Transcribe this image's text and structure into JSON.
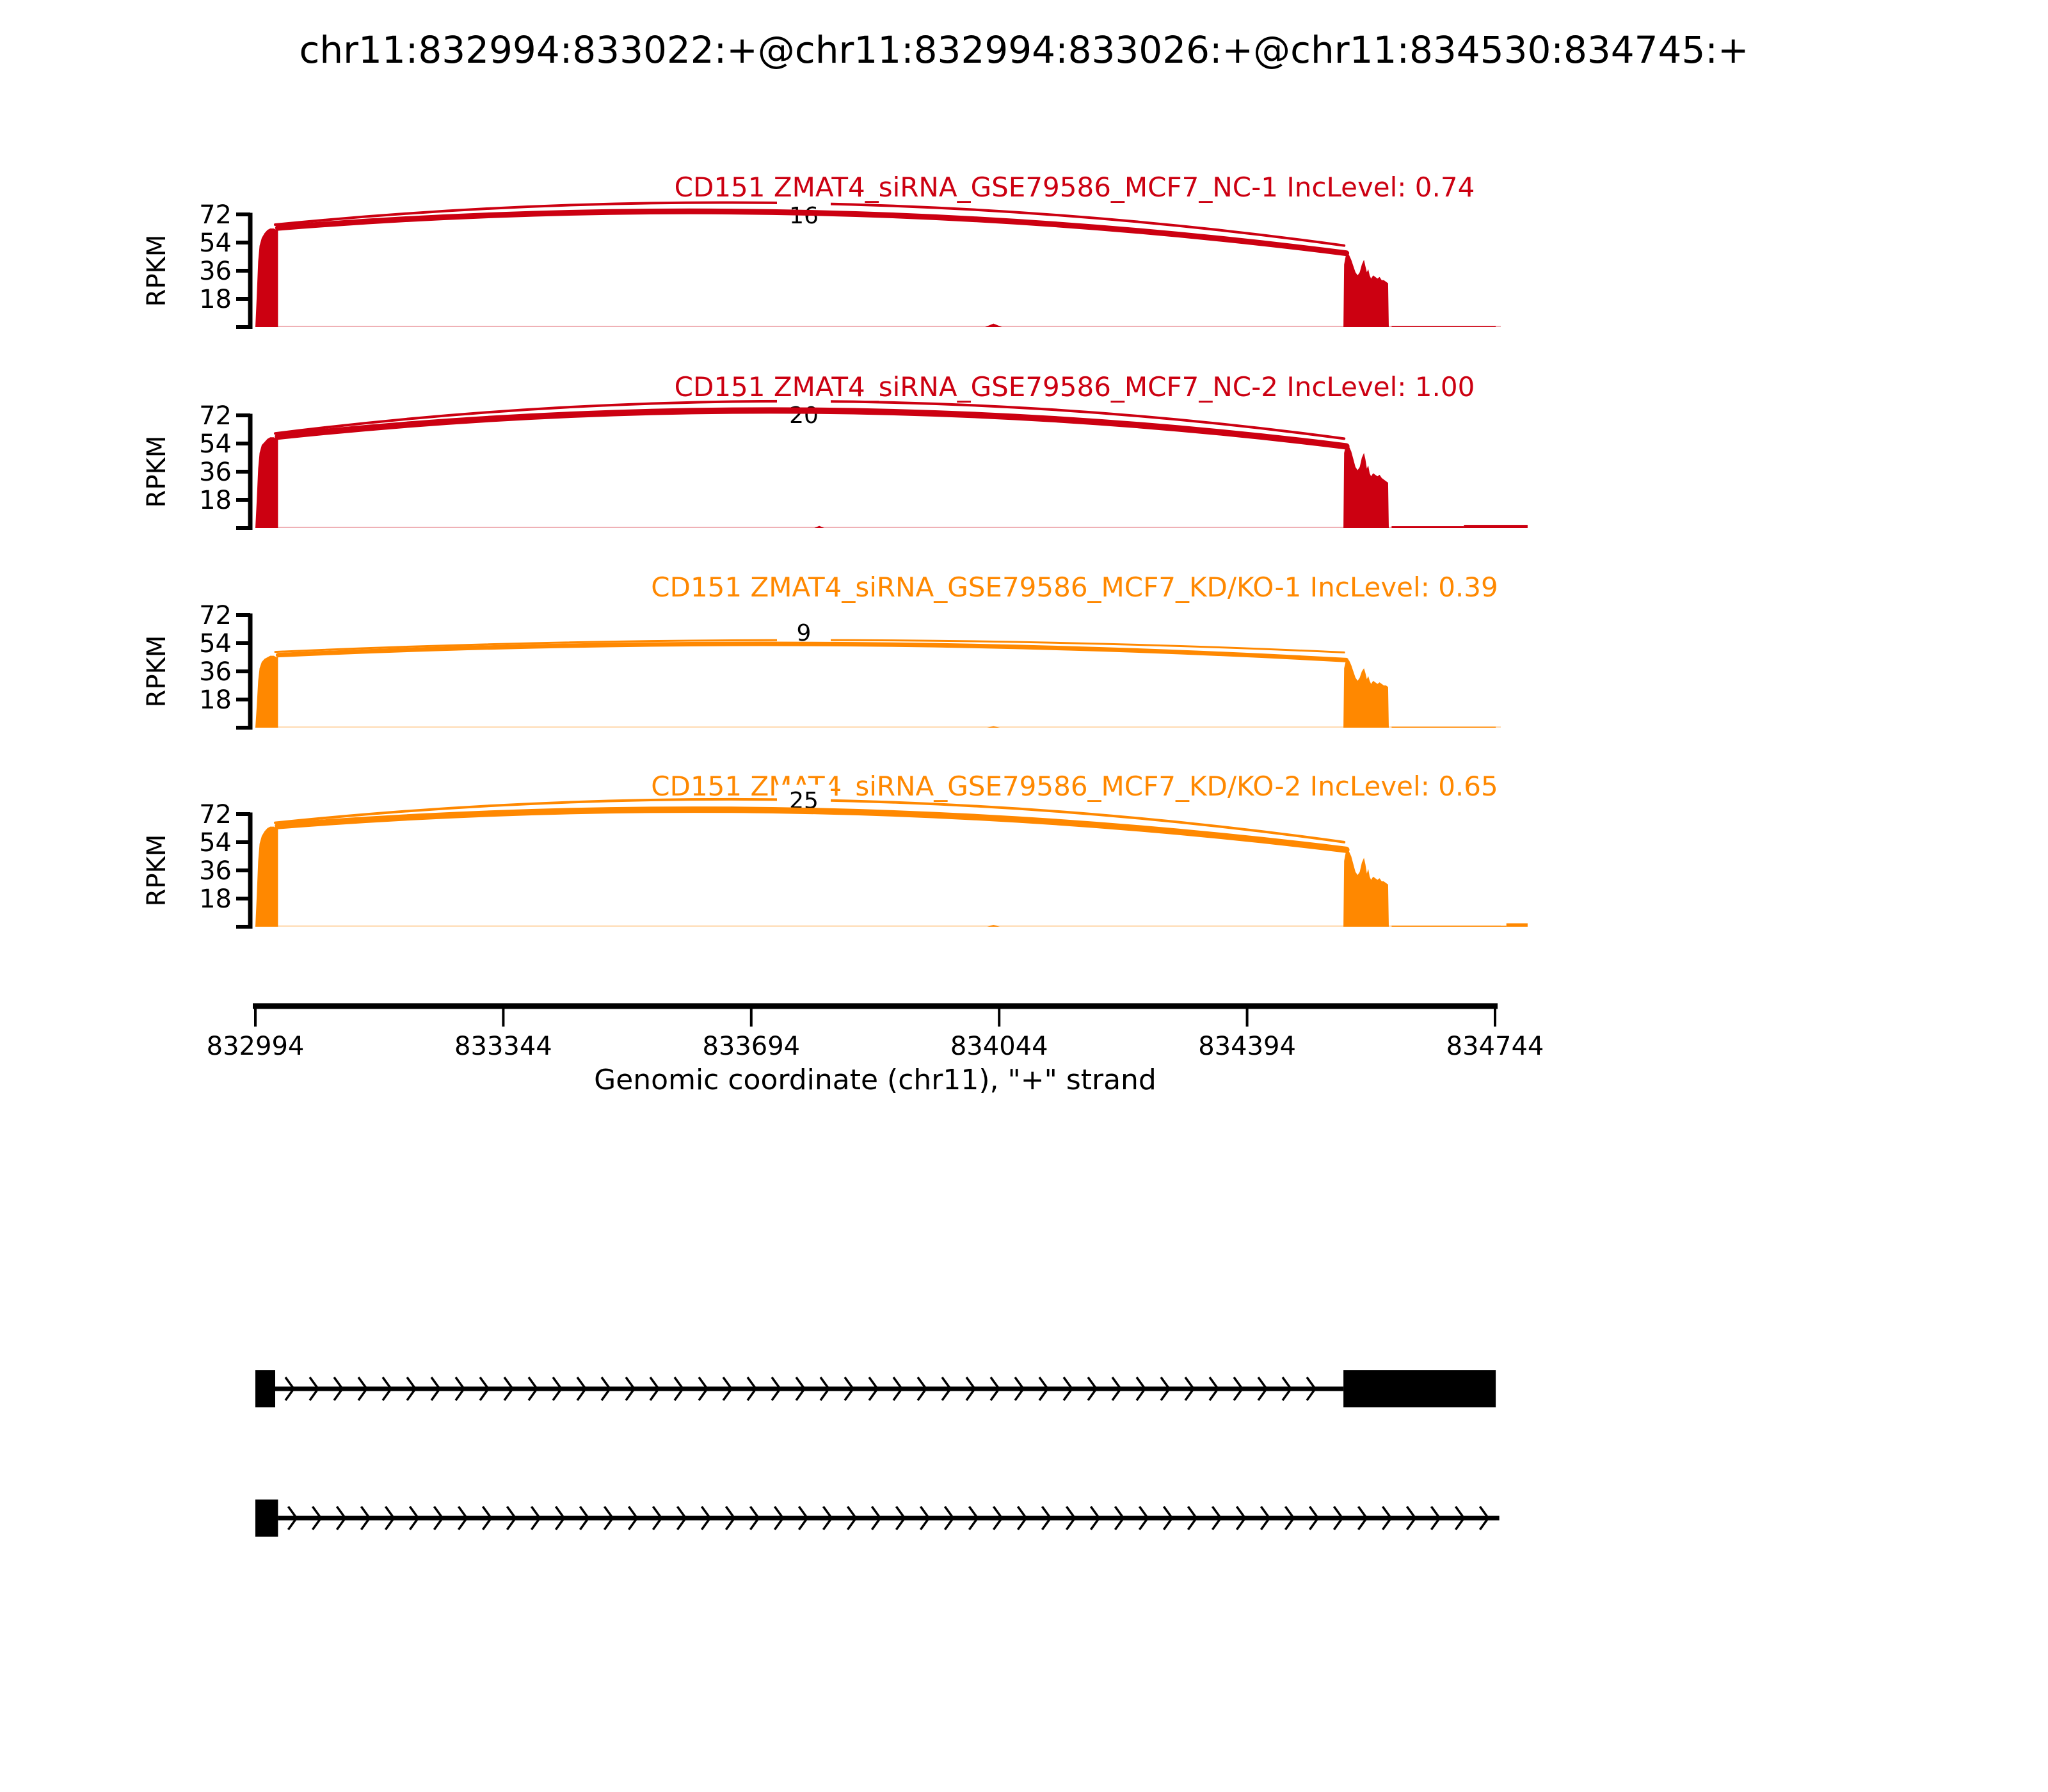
{
  "title": "chr11:832994:833022:+@chr11:832994:833026:+@chr11:834530:834745:+",
  "chart_data": {
    "type": "sashimi",
    "xlabel": "Genomic coordinate (chr11), \"+\" strand",
    "ylabel": "RPKM",
    "x_ticks": [
      832994,
      833344,
      833694,
      834044,
      834394,
      834744
    ],
    "x_domain": [
      832994,
      834790
    ],
    "y_ticks": [
      18,
      36,
      54,
      72
    ],
    "y_max": 80,
    "grid": false,
    "tracks": [
      {
        "label": "CD151 ZMAT4_siRNA_GSE79586_MCF7_NC-1 IncLevel: 0.74",
        "color": "#CC0011",
        "junction_count": 16,
        "inc_level": "0.74",
        "left_exon": {
          "start": 832994,
          "profile": [
            [
              0,
              0
            ],
            [
              2,
              20
            ],
            [
              4,
              42
            ],
            [
              6,
              52
            ],
            [
              9,
              57
            ],
            [
              13,
              60
            ],
            [
              17,
              62
            ],
            [
              21,
              63
            ],
            [
              26,
              63
            ],
            [
              30,
              62
            ],
            [
              32,
              62
            ],
            [
              32,
              0
            ]
          ]
        },
        "right_exon": {
          "start": 834530,
          "profile": [
            [
              0,
              0
            ],
            [
              1,
              40
            ],
            [
              3,
              45
            ],
            [
              5,
              48
            ],
            [
              8,
              46
            ],
            [
              11,
              43
            ],
            [
              14,
              39
            ],
            [
              17,
              35
            ],
            [
              20,
              33
            ],
            [
              23,
              35
            ],
            [
              26,
              40
            ],
            [
              29,
              43
            ],
            [
              31,
              39
            ],
            [
              33,
              35
            ],
            [
              35,
              37
            ],
            [
              37,
              33
            ],
            [
              39,
              31
            ],
            [
              42,
              33
            ],
            [
              45,
              32
            ],
            [
              48,
              31
            ],
            [
              51,
              32
            ],
            [
              54,
              30
            ],
            [
              57,
              30
            ],
            [
              60,
              29
            ],
            [
              63,
              28
            ],
            [
              64,
              0
            ]
          ]
        },
        "junctions": [
          {
            "from": 833022,
            "to": 834531,
            "apex_rpkm": 79,
            "stroke": 4
          },
          {
            "from": 833026,
            "to": 834534,
            "apex_rpkm": 73,
            "stroke": 9
          }
        ],
        "blip": {
          "at": 834036,
          "width_bp": 24,
          "rpkm": 2.2
        },
        "tail_segments": [
          [
            834598,
            834745,
            0.6
          ]
        ]
      },
      {
        "label": "CD151 ZMAT4_siRNA_GSE79586_MCF7_NC-2 IncLevel: 1.00",
        "color": "#CC0011",
        "junction_count": 20,
        "inc_level": "1.00",
        "left_exon": {
          "start": 832994,
          "profile": [
            [
              0,
              0
            ],
            [
              2,
              18
            ],
            [
              4,
              38
            ],
            [
              6,
              48
            ],
            [
              9,
              53
            ],
            [
              13,
              55
            ],
            [
              17,
              57
            ],
            [
              21,
              58
            ],
            [
              26,
              58
            ],
            [
              30,
              57
            ],
            [
              32,
              57
            ],
            [
              32,
              0
            ]
          ]
        },
        "right_exon": {
          "start": 834530,
          "profile": [
            [
              0,
              0
            ],
            [
              1,
              48
            ],
            [
              3,
              52
            ],
            [
              5,
              53
            ],
            [
              8,
              52
            ],
            [
              11,
              49
            ],
            [
              14,
              44
            ],
            [
              17,
              39
            ],
            [
              20,
              37
            ],
            [
              23,
              39
            ],
            [
              26,
              45
            ],
            [
              29,
              48
            ],
            [
              31,
              44
            ],
            [
              33,
              38
            ],
            [
              35,
              40
            ],
            [
              37,
              35
            ],
            [
              39,
              33
            ],
            [
              42,
              35
            ],
            [
              45,
              34
            ],
            [
              48,
              33
            ],
            [
              51,
              34
            ],
            [
              54,
              32
            ],
            [
              57,
              31
            ],
            [
              60,
              30
            ],
            [
              63,
              29
            ],
            [
              64,
              0
            ]
          ]
        },
        "junctions": [
          {
            "from": 833022,
            "to": 834531,
            "apex_rpkm": 81,
            "stroke": 4
          },
          {
            "from": 833026,
            "to": 834534,
            "apex_rpkm": 75,
            "stroke": 10
          }
        ],
        "blip": {
          "at": 833790,
          "width_bp": 14,
          "rpkm": 1.4
        },
        "tail_segments": [
          [
            834598,
            834700,
            1.2
          ],
          [
            834700,
            834790,
            2.0
          ]
        ]
      },
      {
        "label": "CD151 ZMAT4_siRNA_GSE79586_MCF7_KD/KO-1 IncLevel: 0.39",
        "color": "#FF8800",
        "junction_count": 9,
        "inc_level": "0.39",
        "left_exon": {
          "start": 832994,
          "profile": [
            [
              0,
              0
            ],
            [
              2,
              14
            ],
            [
              4,
              30
            ],
            [
              6,
              38
            ],
            [
              9,
              42
            ],
            [
              13,
              44
            ],
            [
              17,
              45
            ],
            [
              21,
              46
            ],
            [
              26,
              46
            ],
            [
              30,
              45
            ],
            [
              32,
              45
            ],
            [
              32,
              0
            ]
          ]
        },
        "right_exon": {
          "start": 834530,
          "profile": [
            [
              0,
              0
            ],
            [
              1,
              38
            ],
            [
              3,
              42
            ],
            [
              5,
              44
            ],
            [
              8,
              43
            ],
            [
              11,
              40
            ],
            [
              14,
              36
            ],
            [
              17,
              32
            ],
            [
              20,
              30
            ],
            [
              23,
              32
            ],
            [
              26,
              36
            ],
            [
              29,
              38
            ],
            [
              31,
              35
            ],
            [
              33,
              31
            ],
            [
              35,
              33
            ],
            [
              37,
              30
            ],
            [
              39,
              28
            ],
            [
              42,
              30
            ],
            [
              45,
              29
            ],
            [
              48,
              28
            ],
            [
              51,
              29
            ],
            [
              54,
              28
            ],
            [
              57,
              27
            ],
            [
              60,
              27
            ],
            [
              63,
              26
            ],
            [
              64,
              0
            ]
          ]
        },
        "junctions": [
          {
            "from": 833022,
            "to": 834531,
            "apex_rpkm": 56,
            "stroke": 3
          },
          {
            "from": 833026,
            "to": 834534,
            "apex_rpkm": 53.5,
            "stroke": 7
          }
        ],
        "blip": {
          "at": 834036,
          "width_bp": 18,
          "rpkm": 1.0
        },
        "tail_segments": [
          [
            834598,
            834745,
            0.6
          ]
        ]
      },
      {
        "label": "CD151 ZMAT4_siRNA_GSE79586_MCF7_KD/KO-2 IncLevel: 0.65",
        "color": "#FF8800",
        "junction_count": 25,
        "inc_level": "0.65",
        "left_exon": {
          "start": 832994,
          "profile": [
            [
              0,
              0
            ],
            [
              2,
              20
            ],
            [
              4,
              42
            ],
            [
              6,
              53
            ],
            [
              9,
              58
            ],
            [
              13,
              61
            ],
            [
              17,
              63
            ],
            [
              21,
              64
            ],
            [
              26,
              64
            ],
            [
              30,
              63
            ],
            [
              32,
              63
            ],
            [
              32,
              0
            ]
          ]
        },
        "right_exon": {
          "start": 834530,
          "profile": [
            [
              0,
              0
            ],
            [
              1,
              42
            ],
            [
              3,
              47
            ],
            [
              5,
              50
            ],
            [
              8,
              48
            ],
            [
              11,
              45
            ],
            [
              14,
              40
            ],
            [
              17,
              35
            ],
            [
              20,
              33
            ],
            [
              23,
              35
            ],
            [
              26,
              41
            ],
            [
              29,
              44
            ],
            [
              31,
              40
            ],
            [
              33,
              34
            ],
            [
              35,
              37
            ],
            [
              37,
              32
            ],
            [
              39,
              30
            ],
            [
              42,
              32
            ],
            [
              45,
              31
            ],
            [
              48,
              30
            ],
            [
              51,
              31
            ],
            [
              54,
              29
            ],
            [
              57,
              29
            ],
            [
              60,
              28
            ],
            [
              63,
              27
            ],
            [
              64,
              0
            ]
          ]
        },
        "junctions": [
          {
            "from": 833022,
            "to": 834531,
            "apex_rpkm": 81,
            "stroke": 4
          },
          {
            "from": 833026,
            "to": 834534,
            "apex_rpkm": 74,
            "stroke": 10
          }
        ],
        "blip": {
          "at": 834036,
          "width_bp": 18,
          "rpkm": 1.2
        },
        "tail_segments": [
          [
            834598,
            834760,
            0.6
          ],
          [
            834760,
            834790,
            2.2
          ]
        ]
      }
    ],
    "transcripts": [
      {
        "exons": [
          [
            832994,
            833022
          ],
          [
            834530,
            834745
          ]
        ],
        "line": [
          833022,
          834530
        ]
      },
      {
        "exons": [
          [
            832994,
            833026
          ]
        ],
        "line": [
          833026,
          834750
        ]
      }
    ]
  }
}
